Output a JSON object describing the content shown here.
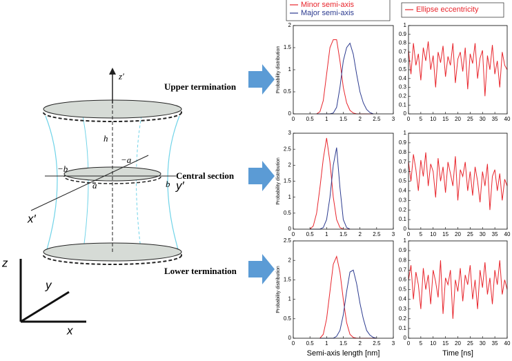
{
  "diagram": {
    "labels": {
      "upper": "Upper termination",
      "central": "Central section",
      "lower": "Lower termination",
      "z_prime": "z′",
      "h": "h",
      "minus_a": "−a",
      "minus_b": "−b",
      "a": "a",
      "b": "b",
      "y_prime": "y′",
      "x_prime": "x′",
      "z": "z",
      "y": "y",
      "x": "x"
    }
  },
  "chart_data": [
    {
      "type": "line",
      "ylabel": "Probability distribution",
      "xlim": [
        0,
        3
      ],
      "xticks": [
        0,
        0.5,
        1,
        1.5,
        2,
        2.5,
        3
      ],
      "ylim": [
        0,
        2
      ],
      "yticks": [
        0,
        0.5,
        1,
        1.5,
        2
      ],
      "x": [
        0.7,
        0.8,
        0.9,
        1.0,
        1.1,
        1.2,
        1.3,
        1.4,
        1.5,
        1.6,
        1.7,
        1.8,
        1.9,
        2.0,
        2.1,
        2.2,
        2.3,
        2.4
      ],
      "series": [
        {
          "name": "Minor semi-axis",
          "color": "#e8242b",
          "values": [
            0,
            0.05,
            0.3,
            0.9,
            1.5,
            1.68,
            1.68,
            1.2,
            0.6,
            0.25,
            0.08,
            0.02,
            0,
            0,
            0,
            0,
            0,
            0
          ]
        },
        {
          "name": "Major semi-axis",
          "color": "#2b3a8f",
          "values": [
            0,
            0,
            0,
            0,
            0,
            0.02,
            0.15,
            0.6,
            1.2,
            1.5,
            1.6,
            1.35,
            0.9,
            0.5,
            0.25,
            0.1,
            0.03,
            0
          ]
        }
      ]
    },
    {
      "type": "line",
      "xlim": [
        0,
        40
      ],
      "xticks": [
        0,
        5,
        10,
        15,
        20,
        25,
        30,
        35,
        40
      ],
      "ylim": [
        0,
        1
      ],
      "yticks": [
        0,
        0.1,
        0.2,
        0.3,
        0.4,
        0.5,
        0.6,
        0.7,
        0.8,
        0.9,
        1
      ],
      "x": [
        0,
        1,
        2,
        3,
        4,
        5,
        6,
        7,
        8,
        9,
        10,
        11,
        12,
        13,
        14,
        15,
        16,
        17,
        18,
        19,
        20,
        21,
        22,
        23,
        24,
        25,
        26,
        27,
        28,
        29,
        30,
        31,
        32,
        33,
        34,
        35,
        36,
        37,
        38,
        39,
        40
      ],
      "series": [
        {
          "name": "Ellipse eccentricity",
          "color": "#e8242b",
          "values": [
            0.72,
            0.45,
            0.8,
            0.55,
            0.68,
            0.38,
            0.75,
            0.6,
            0.82,
            0.5,
            0.66,
            0.3,
            0.7,
            0.58,
            0.77,
            0.42,
            0.65,
            0.55,
            0.8,
            0.35,
            0.62,
            0.7,
            0.48,
            0.75,
            0.28,
            0.68,
            0.57,
            0.8,
            0.4,
            0.63,
            0.72,
            0.2,
            0.66,
            0.5,
            0.78,
            0.45,
            0.6,
            0.3,
            0.7,
            0.55,
            0.5
          ]
        }
      ]
    },
    {
      "type": "line",
      "ylabel": "Probability distribution",
      "xlim": [
        0,
        3
      ],
      "xticks": [
        0,
        0.5,
        1,
        1.5,
        2,
        2.5,
        3
      ],
      "ylim": [
        0,
        3
      ],
      "yticks": [
        0,
        0.5,
        1,
        1.5,
        2,
        2.5,
        3
      ],
      "x": [
        0.5,
        0.6,
        0.7,
        0.8,
        0.9,
        1.0,
        1.1,
        1.2,
        1.3,
        1.4,
        1.5,
        1.6,
        1.7
      ],
      "series": [
        {
          "color": "#e8242b",
          "values": [
            0,
            0.1,
            0.5,
            1.3,
            2.2,
            2.85,
            2.1,
            1.0,
            0.3,
            0.05,
            0,
            0,
            0
          ]
        },
        {
          "color": "#2b3a8f",
          "values": [
            0,
            0,
            0,
            0,
            0.05,
            0.3,
            1.0,
            2.0,
            2.55,
            1.3,
            0.3,
            0.05,
            0
          ]
        }
      ]
    },
    {
      "type": "line",
      "xlim": [
        0,
        40
      ],
      "xticks": [
        0,
        5,
        10,
        15,
        20,
        25,
        30,
        35,
        40
      ],
      "ylim": [
        0,
        1
      ],
      "yticks": [
        0,
        0.1,
        0.2,
        0.3,
        0.4,
        0.5,
        0.6,
        0.7,
        0.8,
        0.9,
        1
      ],
      "x": [
        0,
        1,
        2,
        3,
        4,
        5,
        6,
        7,
        8,
        9,
        10,
        11,
        12,
        13,
        14,
        15,
        16,
        17,
        18,
        19,
        20,
        21,
        22,
        23,
        24,
        25,
        26,
        27,
        28,
        29,
        30,
        31,
        32,
        33,
        34,
        35,
        36,
        37,
        38,
        39,
        40
      ],
      "series": [
        {
          "color": "#e8242b",
          "values": [
            0.7,
            0.5,
            0.78,
            0.62,
            0.4,
            0.72,
            0.55,
            0.8,
            0.45,
            0.68,
            0.6,
            0.33,
            0.74,
            0.5,
            0.65,
            0.38,
            0.7,
            0.58,
            0.45,
            0.76,
            0.3,
            0.62,
            0.55,
            0.7,
            0.4,
            0.6,
            0.35,
            0.65,
            0.5,
            0.28,
            0.6,
            0.45,
            0.68,
            0.2,
            0.55,
            0.62,
            0.4,
            0.58,
            0.3,
            0.52,
            0.45
          ]
        }
      ]
    },
    {
      "type": "line",
      "ylabel": "Probability distribution",
      "xlabel": "Semi-axis length [nm]",
      "xlim": [
        0,
        3
      ],
      "xticks": [
        0,
        0.5,
        1,
        1.5,
        2,
        2.5,
        3
      ],
      "ylim": [
        0,
        2.5
      ],
      "yticks": [
        0,
        0.5,
        1,
        1.5,
        2,
        2.5
      ],
      "x": [
        0.8,
        0.9,
        1.0,
        1.1,
        1.2,
        1.3,
        1.4,
        1.5,
        1.6,
        1.7,
        1.8,
        1.9,
        2.0,
        2.1,
        2.2,
        2.3,
        2.4,
        2.5
      ],
      "series": [
        {
          "color": "#e8242b",
          "values": [
            0,
            0.1,
            0.5,
            1.2,
            1.9,
            2.1,
            1.7,
            1.0,
            0.4,
            0.1,
            0.02,
            0,
            0,
            0,
            0,
            0,
            0,
            0
          ]
        },
        {
          "color": "#2b3a8f",
          "values": [
            0,
            0,
            0,
            0,
            0,
            0.05,
            0.2,
            0.6,
            1.2,
            1.7,
            1.75,
            1.4,
            0.9,
            0.5,
            0.2,
            0.08,
            0.02,
            0
          ]
        }
      ]
    },
    {
      "type": "line",
      "xlabel": "Time [ns]",
      "xlim": [
        0,
        40
      ],
      "xticks": [
        0,
        5,
        10,
        15,
        20,
        25,
        30,
        35,
        40
      ],
      "ylim": [
        0,
        1
      ],
      "yticks": [
        0,
        0.1,
        0.2,
        0.3,
        0.4,
        0.5,
        0.6,
        0.7,
        0.8,
        0.9,
        1
      ],
      "x": [
        0,
        1,
        2,
        3,
        4,
        5,
        6,
        7,
        8,
        9,
        10,
        11,
        12,
        13,
        14,
        15,
        16,
        17,
        18,
        19,
        20,
        21,
        22,
        23,
        24,
        25,
        26,
        27,
        28,
        29,
        30,
        31,
        32,
        33,
        34,
        35,
        36,
        37,
        38,
        39,
        40
      ],
      "series": [
        {
          "color": "#e8242b",
          "values": [
            0.6,
            0.75,
            0.4,
            0.68,
            0.55,
            0.3,
            0.72,
            0.5,
            0.65,
            0.35,
            0.7,
            0.58,
            0.42,
            0.8,
            0.25,
            0.62,
            0.55,
            0.7,
            0.2,
            0.6,
            0.48,
            0.72,
            0.38,
            0.65,
            0.55,
            0.75,
            0.4,
            0.6,
            0.3,
            0.7,
            0.52,
            0.78,
            0.45,
            0.62,
            0.35,
            0.7,
            0.55,
            0.8,
            0.45,
            0.6,
            0.5
          ]
        }
      ]
    }
  ]
}
